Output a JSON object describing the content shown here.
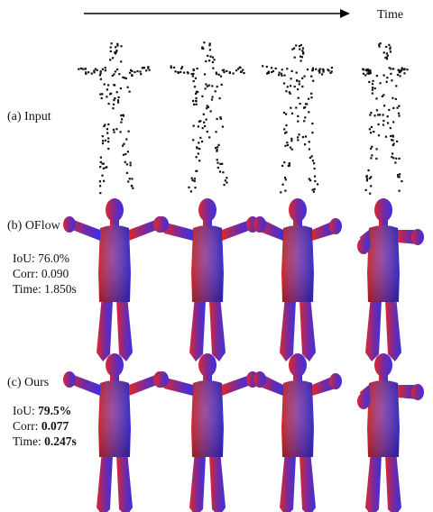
{
  "time_label": "Time",
  "rows": [
    {
      "label": "(a) Input",
      "metrics": []
    },
    {
      "label": "(b) OFlow",
      "metrics": [
        {
          "name": "IoU:",
          "value": "76.0%",
          "bold": false
        },
        {
          "name": "Corr:",
          "value": "0.090",
          "bold": false
        },
        {
          "name": "Time:",
          "value": "1.850s",
          "bold": false
        }
      ]
    },
    {
      "label": "(c) Ours",
      "metrics": [
        {
          "name": "IoU:",
          "value": "79.5%",
          "bold": true
        },
        {
          "name": "Corr:",
          "value": "0.077",
          "bold": true
        },
        {
          "name": "Time:",
          "value": "0.247s",
          "bold": true
        }
      ]
    }
  ],
  "colors": {
    "mesh_left": "#e0262a",
    "mesh_right": "#3a2fe6",
    "points": "#111111",
    "arrow": "#000000"
  }
}
